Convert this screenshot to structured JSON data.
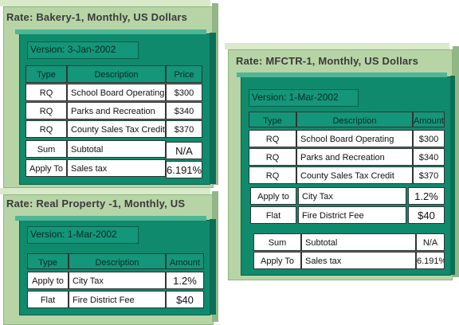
{
  "bakery": {
    "title": "Rate: Bakery-1, Monthly, US Dollars",
    "version": "Version: 3-Jan-2002",
    "headers": [
      "Type",
      "Description",
      "Price"
    ],
    "rows": [
      [
        "RQ",
        "School Board Operating",
        "$300"
      ],
      [
        "RQ",
        "Parks and Recreation",
        "$340"
      ],
      [
        "RQ",
        "County Sales Tax Credit",
        "$370"
      ]
    ],
    "sum_row": [
      "Sum",
      "Subtotal",
      "N/A"
    ],
    "apply_row": [
      "Apply To",
      "Sales tax",
      "6.191%"
    ]
  },
  "realprop": {
    "title": "Rate: Real Property -1, Monthly, US",
    "version": "Version: 1-Mar-2002",
    "headers": [
      "Type",
      "Description",
      "Amount"
    ],
    "rows": [
      [
        "Apply to",
        "City Tax",
        "1.2%"
      ],
      [
        "Flat",
        "Fire District Fee",
        "$40"
      ]
    ]
  },
  "mfctr": {
    "title": "Rate: MFCTR-1, Monthly, US Dollars",
    "version": "Version: 1-Mar-2002",
    "headers": [
      "Type",
      "Description",
      "Amount"
    ],
    "rows": [
      [
        "RQ",
        "School Board Operating",
        "$300"
      ],
      [
        "RQ",
        "Parks and Recreation",
        "$340"
      ],
      [
        "RQ",
        "County Sales Tax Credit",
        "$370"
      ]
    ],
    "rows2": [
      [
        "Apply to",
        "City Tax",
        "1.2%"
      ],
      [
        "Flat",
        "Fire District Fee",
        "$40"
      ]
    ],
    "rows3": [
      [
        "Sum",
        "Subtotal",
        "N/A"
      ],
      [
        "Apply To",
        "Sales tax",
        "6.191%"
      ]
    ]
  }
}
